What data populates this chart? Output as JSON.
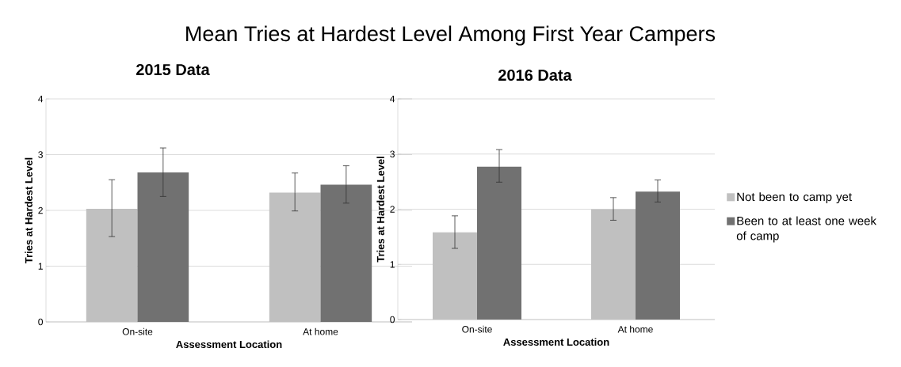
{
  "chart_data": [
    {
      "type": "bar",
      "title": "Mean Tries at Hardest Level Among First Year Campers",
      "subtitle": "2015 Data",
      "xlabel": "Assessment Location",
      "ylabel": "Tries at Hardest Level",
      "categories": [
        "On-site",
        "At home"
      ],
      "series": [
        {
          "color": "#c0c0c0",
          "values": [
            2.03,
            2.32
          ],
          "errors": [
            [
              1.53,
              2.55
            ],
            [
              1.99,
              2.67
            ]
          ]
        },
        {
          "color": "#717171",
          "values": [
            2.68,
            2.46
          ],
          "errors": [
            [
              2.25,
              3.12
            ],
            [
              2.13,
              2.8
            ]
          ]
        }
      ],
      "ylim": [
        0,
        4
      ],
      "yticks": [
        0,
        1,
        2,
        3,
        4
      ],
      "grid": "y",
      "legend": false
    },
    {
      "type": "bar",
      "subtitle": "2016 Data",
      "xlabel": "Assessment Location",
      "ylabel": "Tries at Hardest Level",
      "categories": [
        "On-site",
        "At home"
      ],
      "series": [
        {
          "name": "Not been to camp yet",
          "color": "#c0c0c0",
          "values": [
            1.58,
            2.0
          ],
          "errors": [
            [
              1.29,
              1.88
            ],
            [
              1.8,
              2.21
            ]
          ]
        },
        {
          "name": "Been to at least one week of camp",
          "color": "#717171",
          "values": [
            2.77,
            2.32
          ],
          "errors": [
            [
              2.49,
              3.08
            ],
            [
              2.13,
              2.53
            ]
          ]
        }
      ],
      "ylim": [
        0,
        4
      ],
      "yticks": [
        0,
        1,
        2,
        3,
        4
      ],
      "grid": "y",
      "legend": "right"
    }
  ]
}
